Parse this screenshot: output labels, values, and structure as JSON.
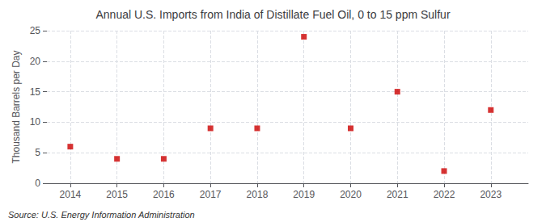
{
  "chart_data": {
    "type": "scatter",
    "title": "Annual U.S. Imports from India of Distillate Fuel Oil, 0 to 15 ppm Sulfur",
    "ylabel": "Thousand Barrels per Day",
    "source": "Source: U.S. Energy Information Administration",
    "x": [
      2014,
      2015,
      2016,
      2017,
      2018,
      2019,
      2020,
      2021,
      2022,
      2023
    ],
    "values": [
      6.0,
      4.0,
      4.0,
      9.0,
      9.0,
      24.0,
      9.0,
      15.0,
      2.0,
      12.0
    ],
    "xlim": [
      2013.5,
      2023.8
    ],
    "xticks": [
      2014,
      2015,
      2016,
      2017,
      2018,
      2019,
      2020,
      2021,
      2022,
      2023
    ],
    "ylim": [
      0,
      25
    ],
    "yticks": [
      0,
      5,
      10,
      15,
      20,
      25
    ],
    "color": "#cc0000",
    "marker": "square",
    "grid": true
  }
}
